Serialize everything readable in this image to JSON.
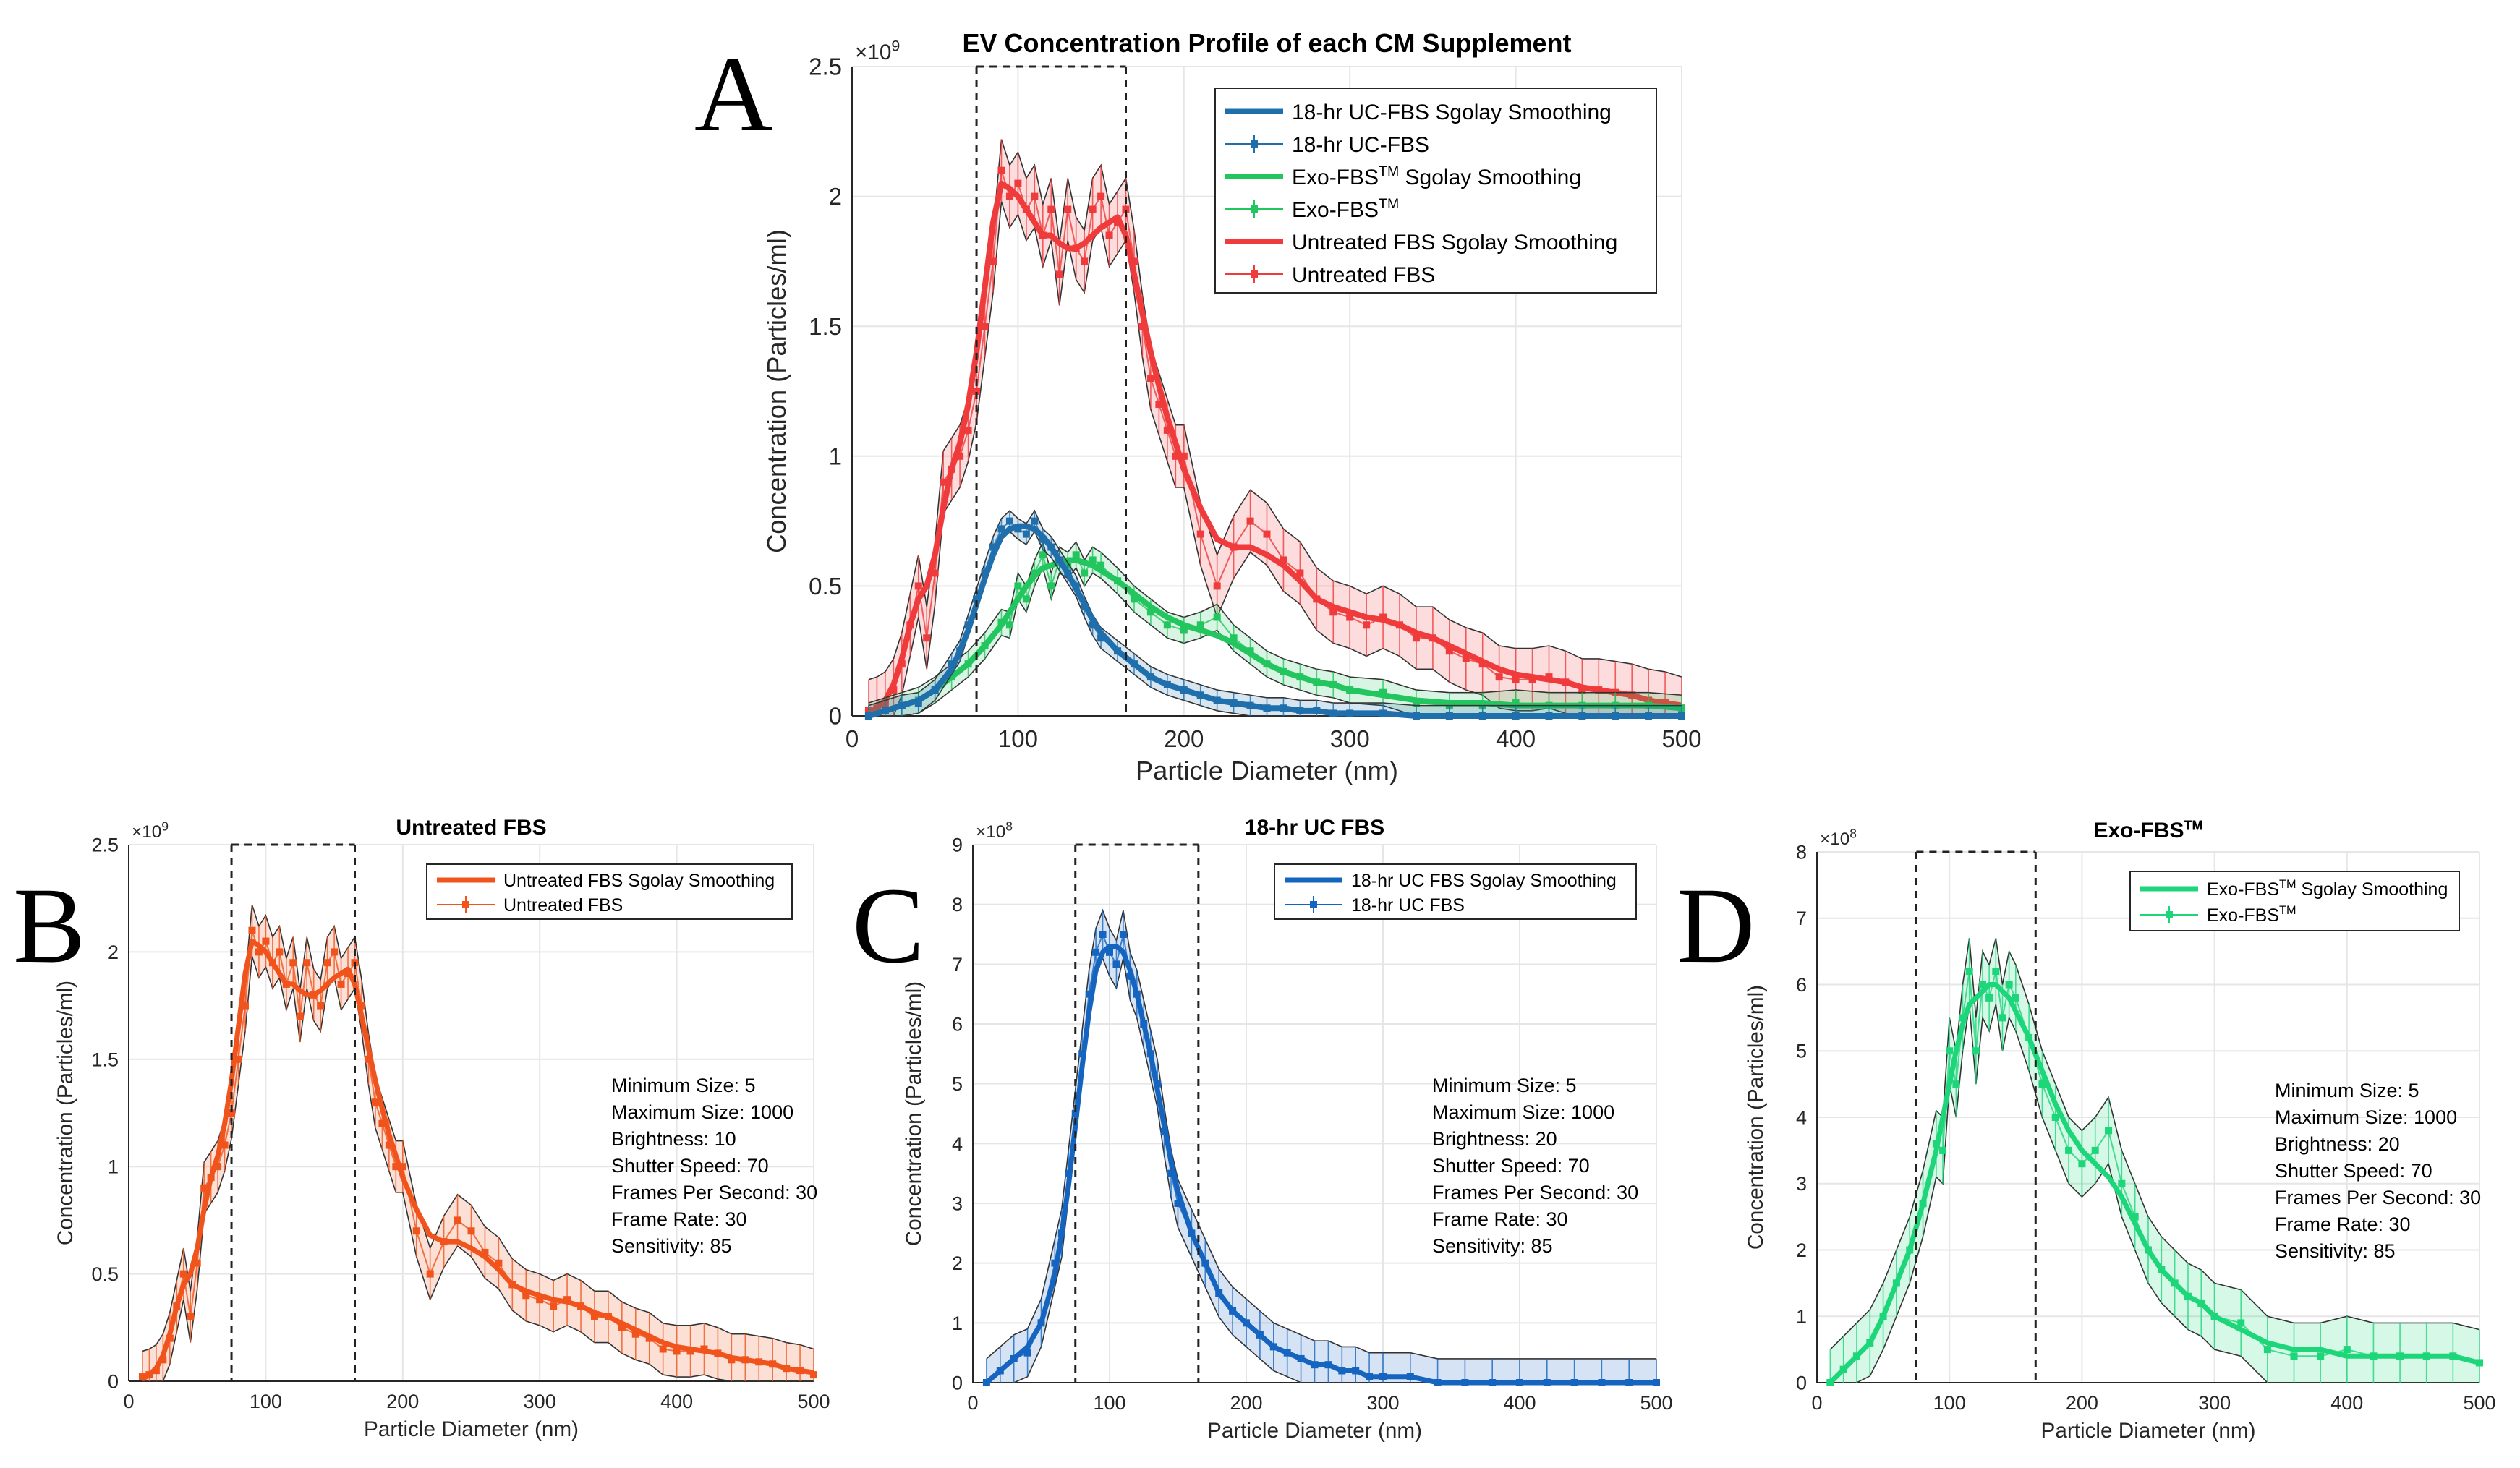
{
  "panel_letters": [
    "A",
    "B",
    "C",
    "D"
  ],
  "colors": {
    "ucfbs": "#1f6fad",
    "exofbs": "#22c55e",
    "untreated_a": "#ef3b3b",
    "untreated_b": "#f0541c",
    "ucfbs_c": "#1565c0",
    "exofbs_d": "#1dd67a",
    "dashed": "#222222"
  },
  "settings_blocks": [
    [
      "Minimum Size: 5",
      "Maximum Size: 1000",
      "Brightness: 10",
      "Shutter Speed: 70",
      "Frames Per Second: 30",
      "Frame Rate: 30",
      "Sensitivity: 85"
    ],
    [
      "Minimum Size: 5",
      "Maximum Size: 1000",
      "Brightness: 20",
      "Shutter Speed: 70",
      "Frames Per Second: 30",
      "Frame Rate: 30",
      "Sensitivity: 85"
    ],
    [
      "Minimum Size: 5",
      "Maximum Size: 1000",
      "Brightness: 20",
      "Shutter Speed: 70",
      "Frames Per Second: 30",
      "Frame Rate: 30",
      "Sensitivity: 85"
    ]
  ],
  "chart_data": [
    {
      "type": "line",
      "panel": "A",
      "title": "EV Concentration Profile of each CM Supplement",
      "xlabel": "Particle Diameter (nm)",
      "ylabel": "Concentration (Particles/ml)",
      "exponent_label": "×10",
      "exponent": "9",
      "xlim": [
        0,
        500
      ],
      "ylim": [
        0,
        2.5
      ],
      "xticks": [
        "0",
        "100",
        "200",
        "300",
        "400",
        "500"
      ],
      "yticks": [
        "0",
        "0.5",
        "1",
        "1.5",
        "2",
        "2.5"
      ],
      "dashed_lines_x": [
        75,
        165
      ],
      "legend": [
        "18-hr UC-FBS Sgolay Smoothing",
        "18-hr UC-FBS",
        "Exo-FBS",
        "Sgolay Smoothing",
        "Exo-FBS",
        "Untreated FBS Sgolay Smoothing",
        "Untreated FBS"
      ],
      "legend_tm": "TM",
      "series": [
        {
          "name": "Untreated FBS",
          "x": [
            10,
            15,
            20,
            25,
            30,
            35,
            40,
            45,
            50,
            55,
            60,
            65,
            70,
            75,
            80,
            85,
            90,
            95,
            100,
            105,
            110,
            115,
            120,
            125,
            130,
            135,
            140,
            145,
            150,
            155,
            160,
            165,
            170,
            175,
            180,
            185,
            190,
            195,
            200,
            210,
            220,
            230,
            240,
            250,
            260,
            270,
            280,
            290,
            300,
            310,
            320,
            330,
            340,
            350,
            360,
            370,
            380,
            390,
            400,
            410,
            420,
            430,
            440,
            450,
            460,
            470,
            480,
            490,
            500
          ],
          "y": [
            0.02,
            0.03,
            0.05,
            0.1,
            0.2,
            0.35,
            0.5,
            0.3,
            0.55,
            0.9,
            0.95,
            1.0,
            1.1,
            1.25,
            1.5,
            1.75,
            2.1,
            2.0,
            2.05,
            1.95,
            2.0,
            1.85,
            1.95,
            1.7,
            1.95,
            1.8,
            1.75,
            1.95,
            2.0,
            1.85,
            1.9,
            1.95,
            1.75,
            1.5,
            1.3,
            1.2,
            1.1,
            1.0,
            1.0,
            0.7,
            0.5,
            0.65,
            0.75,
            0.7,
            0.6,
            0.55,
            0.45,
            0.4,
            0.38,
            0.35,
            0.38,
            0.35,
            0.3,
            0.3,
            0.25,
            0.22,
            0.2,
            0.15,
            0.14,
            0.14,
            0.15,
            0.13,
            0.1,
            0.1,
            0.09,
            0.08,
            0.06,
            0.05,
            0.03
          ],
          "smooth": [
            0.01,
            0.03,
            0.06,
            0.12,
            0.22,
            0.35,
            0.45,
            0.5,
            0.62,
            0.8,
            0.95,
            1.05,
            1.2,
            1.4,
            1.65,
            1.9,
            2.05,
            2.03,
            2.0,
            1.95,
            1.9,
            1.85,
            1.85,
            1.82,
            1.8,
            1.8,
            1.82,
            1.85,
            1.88,
            1.9,
            1.92,
            1.85,
            1.7,
            1.55,
            1.4,
            1.27,
            1.15,
            1.05,
            0.95,
            0.8,
            0.68,
            0.65,
            0.65,
            0.62,
            0.58,
            0.52,
            0.45,
            0.42,
            0.4,
            0.38,
            0.37,
            0.35,
            0.32,
            0.3,
            0.27,
            0.24,
            0.21,
            0.18,
            0.16,
            0.15,
            0.14,
            0.13,
            0.11,
            0.1,
            0.09,
            0.08,
            0.06,
            0.05,
            0.04
          ],
          "err": 0.12
        },
        {
          "name": "18-hr UC-FBS",
          "x": [
            10,
            20,
            30,
            40,
            50,
            60,
            65,
            70,
            75,
            80,
            85,
            90,
            95,
            100,
            105,
            110,
            115,
            120,
            125,
            130,
            135,
            140,
            145,
            150,
            160,
            170,
            180,
            190,
            200,
            210,
            220,
            230,
            240,
            250,
            260,
            270,
            280,
            290,
            300,
            320,
            340,
            360,
            380,
            400,
            420,
            440,
            460,
            480,
            500
          ],
          "y": [
            0.0,
            0.02,
            0.04,
            0.05,
            0.1,
            0.2,
            0.25,
            0.35,
            0.45,
            0.55,
            0.65,
            0.72,
            0.75,
            0.72,
            0.7,
            0.75,
            0.68,
            0.65,
            0.6,
            0.55,
            0.5,
            0.42,
            0.35,
            0.3,
            0.25,
            0.2,
            0.15,
            0.12,
            0.1,
            0.08,
            0.06,
            0.05,
            0.04,
            0.03,
            0.03,
            0.02,
            0.02,
            0.01,
            0.01,
            0.01,
            0.0,
            0.0,
            0.0,
            0.0,
            0.0,
            0.0,
            0.0,
            0.0,
            0.0
          ],
          "smooth": [
            0.0,
            0.02,
            0.04,
            0.06,
            0.1,
            0.18,
            0.25,
            0.33,
            0.43,
            0.53,
            0.62,
            0.69,
            0.72,
            0.73,
            0.73,
            0.72,
            0.69,
            0.65,
            0.6,
            0.55,
            0.49,
            0.43,
            0.37,
            0.32,
            0.25,
            0.2,
            0.15,
            0.12,
            0.1,
            0.08,
            0.06,
            0.05,
            0.04,
            0.03,
            0.03,
            0.02,
            0.02,
            0.01,
            0.01,
            0.01,
            0.0,
            0.0,
            0.0,
            0.0,
            0.0,
            0.0,
            0.0,
            0.0,
            0.0
          ],
          "err": 0.04
        },
        {
          "name": "Exo-FBS",
          "x": [
            10,
            20,
            30,
            40,
            50,
            60,
            70,
            80,
            90,
            95,
            100,
            105,
            110,
            115,
            120,
            125,
            130,
            135,
            140,
            145,
            150,
            160,
            170,
            180,
            190,
            200,
            210,
            220,
            230,
            240,
            250,
            260,
            270,
            280,
            290,
            300,
            320,
            340,
            360,
            380,
            400,
            420,
            440,
            460,
            480,
            500
          ],
          "y": [
            0.0,
            0.02,
            0.04,
            0.06,
            0.1,
            0.15,
            0.2,
            0.27,
            0.36,
            0.35,
            0.5,
            0.45,
            0.55,
            0.62,
            0.5,
            0.6,
            0.58,
            0.62,
            0.55,
            0.6,
            0.58,
            0.52,
            0.45,
            0.4,
            0.35,
            0.33,
            0.35,
            0.38,
            0.3,
            0.25,
            0.2,
            0.17,
            0.15,
            0.13,
            0.12,
            0.1,
            0.09,
            0.05,
            0.04,
            0.04,
            0.05,
            0.04,
            0.04,
            0.04,
            0.04,
            0.03
          ],
          "smooth": [
            0.0,
            0.02,
            0.04,
            0.06,
            0.1,
            0.15,
            0.2,
            0.27,
            0.35,
            0.4,
            0.45,
            0.5,
            0.54,
            0.57,
            0.58,
            0.59,
            0.6,
            0.6,
            0.59,
            0.58,
            0.56,
            0.52,
            0.47,
            0.42,
            0.38,
            0.35,
            0.33,
            0.31,
            0.28,
            0.24,
            0.2,
            0.17,
            0.15,
            0.13,
            0.12,
            0.1,
            0.08,
            0.06,
            0.05,
            0.05,
            0.04,
            0.04,
            0.04,
            0.04,
            0.04,
            0.03
          ],
          "err": 0.05
        }
      ]
    },
    {
      "type": "line",
      "panel": "B",
      "title": "Untreated FBS",
      "xlabel": "Particle Diameter (nm)",
      "ylabel": "Concentration (Particles/ml)",
      "exponent_label": "×10",
      "exponent": "9",
      "xlim": [
        0,
        500
      ],
      "ylim": [
        0,
        2.5
      ],
      "xticks": [
        "0",
        "100",
        "200",
        "300",
        "400",
        "500"
      ],
      "yticks": [
        "0",
        "0.5",
        "1",
        "1.5",
        "2",
        "2.5"
      ],
      "dashed_lines_x": [
        75,
        165
      ],
      "legend": [
        "Untreated FBS Sgolay Smoothing",
        "Untreated FBS"
      ],
      "series_ref": "Untreated FBS"
    },
    {
      "type": "line",
      "panel": "C",
      "title": "18-hr UC FBS",
      "xlabel": "Particle Diameter (nm)",
      "ylabel": "Concentration (Particles/ml)",
      "exponent_label": "×10",
      "exponent": "8",
      "xlim": [
        0,
        500
      ],
      "ylim": [
        0,
        9
      ],
      "xticks": [
        "0",
        "100",
        "200",
        "300",
        "400",
        "500"
      ],
      "yticks": [
        "0",
        "1",
        "2",
        "3",
        "4",
        "5",
        "6",
        "7",
        "8",
        "9"
      ],
      "dashed_lines_x": [
        75,
        165
      ],
      "legend": [
        "18-hr UC FBS Sgolay Smoothing",
        "18-hr UC FBS"
      ],
      "series_ref": "18-hr UC-FBS"
    },
    {
      "type": "line",
      "panel": "D",
      "title": "Exo-FBS",
      "title_tm": "TM",
      "xlabel": "Particle Diameter (nm)",
      "ylabel": "Concentration (Particles/ml)",
      "exponent_label": "×10",
      "exponent": "8",
      "xlim": [
        0,
        500
      ],
      "ylim": [
        0,
        8
      ],
      "xticks": [
        "0",
        "100",
        "200",
        "300",
        "400",
        "500"
      ],
      "yticks": [
        "0",
        "1",
        "2",
        "3",
        "4",
        "5",
        "6",
        "7",
        "8"
      ],
      "dashed_lines_x": [
        75,
        165
      ],
      "legend": [
        "Exo-FBS",
        "Sgolay Smoothing",
        "Exo-FBS"
      ],
      "legend_tm": "TM",
      "series_ref": "Exo-FBS"
    }
  ]
}
